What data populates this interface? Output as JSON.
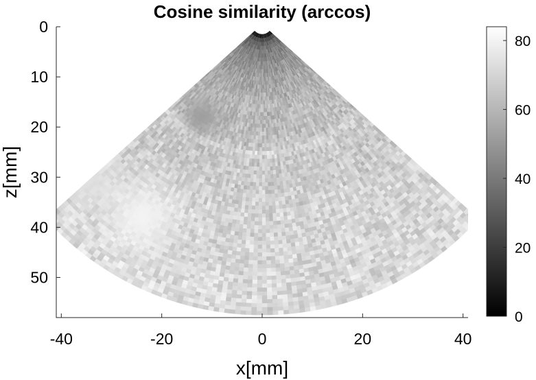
{
  "chart_data": {
    "type": "heatmap",
    "title": "Cosine similarity (arccos)",
    "xlabel": "x[mm]",
    "ylabel": "z[mm]",
    "xlim": [
      -41,
      41
    ],
    "ylim": [
      0,
      58
    ],
    "y_direction": "reversed",
    "xticks": [
      -40,
      -20,
      0,
      20,
      40
    ],
    "xtick_labels": [
      "-40",
      "-20",
      "0",
      "20",
      "40"
    ],
    "yticks": [
      0,
      10,
      20,
      30,
      40,
      50
    ],
    "ytick_labels": [
      "0",
      "10",
      "20",
      "30",
      "40",
      "50"
    ],
    "colormap": "gray",
    "colorbar": {
      "range": [
        0,
        84
      ],
      "ticks": [
        0,
        20,
        40,
        60,
        80
      ],
      "tick_labels": [
        "0",
        "20",
        "40",
        "60",
        "80"
      ]
    },
    "sector": {
      "apex_depth_mm": -0.5,
      "min_depth_mm": 1.5,
      "max_depth_mm": 57.5,
      "half_angle_deg": 48
    },
    "profile": {
      "depth_mm": [
        1.5,
        3,
        5,
        8,
        12,
        16,
        20,
        24,
        25.5,
        26.5,
        30,
        35,
        40,
        45,
        50,
        57.5
      ],
      "value": [
        2,
        30,
        40,
        48,
        55,
        60,
        62,
        64,
        72,
        66,
        66,
        68,
        70,
        70,
        71,
        72
      ]
    },
    "features": [
      {
        "x_mm": -12,
        "depth_mm": 18,
        "radius_mm": 2.5,
        "value": 52
      },
      {
        "x_mm": -24,
        "depth_mm": 38,
        "radius_mm": 5,
        "value": 80
      },
      {
        "x_mm": -35,
        "depth_mm": 30,
        "radius_mm": 4,
        "value": 74
      }
    ]
  }
}
